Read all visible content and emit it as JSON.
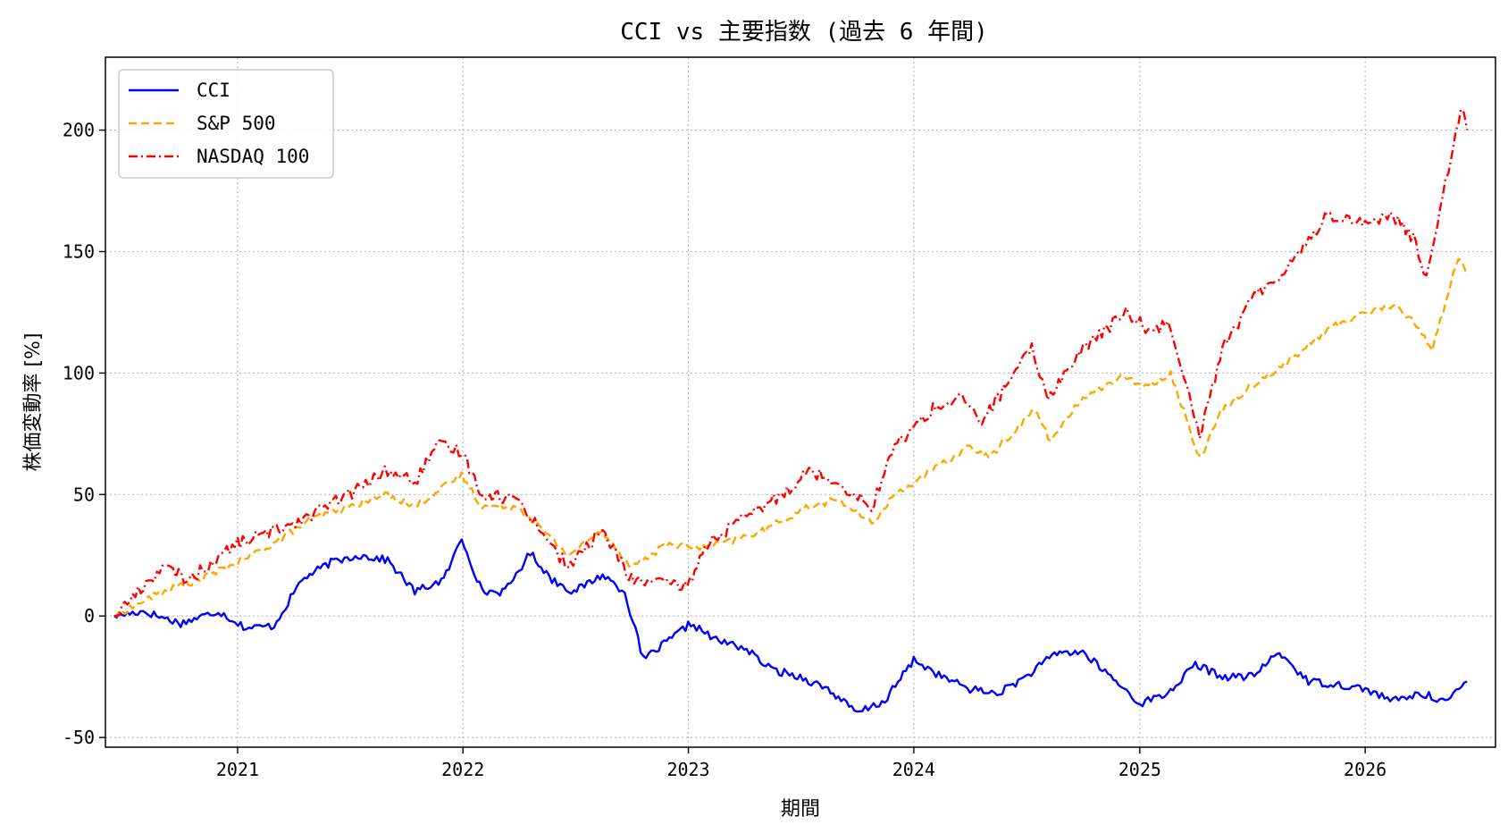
{
  "chart_data": {
    "type": "line",
    "title": "CCI vs 主要指数 (過去 6 年間)",
    "xlabel": "期間",
    "ylabel": "株価変動率 [%]",
    "xlim": [
      "2020-06-01",
      "2026-07-31"
    ],
    "ylim": [
      -54,
      230
    ],
    "xticks": [
      "2021",
      "2022",
      "2023",
      "2024",
      "2025",
      "2026"
    ],
    "xtick_dates": [
      "2021-01-01",
      "2022-01-01",
      "2023-01-01",
      "2024-01-01",
      "2025-01-01",
      "2026-01-01"
    ],
    "yticks": [
      -50,
      0,
      50,
      100,
      150,
      200
    ],
    "grid": true,
    "legend_position": "top-left",
    "series": [
      {
        "name": "CCI",
        "color": "#0000ff",
        "dash": "solid",
        "x": [
          "2020-06-15",
          "2020-08-01",
          "2020-10-01",
          "2020-12-01",
          "2021-01-15",
          "2021-03-01",
          "2021-04-15",
          "2021-06-01",
          "2021-07-15",
          "2021-09-01",
          "2021-10-15",
          "2021-12-01",
          "2021-12-30",
          "2022-02-01",
          "2022-03-10",
          "2022-04-20",
          "2022-05-25",
          "2022-06-30",
          "2022-08-15",
          "2022-09-20",
          "2022-10-20",
          "2022-12-01",
          "2023-01-05",
          "2023-02-15",
          "2023-04-01",
          "2023-05-15",
          "2023-07-01",
          "2023-08-15",
          "2023-10-01",
          "2023-11-15",
          "2024-01-01",
          "2024-02-15",
          "2024-04-01",
          "2024-05-15",
          "2024-07-01",
          "2024-08-20",
          "2024-10-01",
          "2024-11-15",
          "2025-01-01",
          "2025-02-15",
          "2025-04-01",
          "2025-05-15",
          "2025-07-01",
          "2025-08-15",
          "2025-10-01",
          "2025-11-15",
          "2026-01-01",
          "2026-02-15",
          "2026-04-01",
          "2026-05-15",
          "2026-06-15"
        ],
        "y": [
          0,
          2,
          -3,
          2,
          -5,
          -4,
          15,
          22,
          25,
          23,
          10,
          15,
          32,
          10,
          10,
          26,
          15,
          10,
          17,
          10,
          -18,
          -10,
          -3,
          -10,
          -13,
          -22,
          -25,
          -30,
          -40,
          -35,
          -18,
          -25,
          -30,
          -32,
          -25,
          -15,
          -15,
          -25,
          -36,
          -32,
          -20,
          -25,
          -25,
          -15,
          -27,
          -28,
          -30,
          -35,
          -32,
          -35,
          -27
        ]
      },
      {
        "name": "S&P 500",
        "color": "#ffa500",
        "dash": "dashed",
        "x": [
          "2020-06-15",
          "2020-09-01",
          "2020-11-01",
          "2021-01-01",
          "2021-03-01",
          "2021-05-01",
          "2021-07-01",
          "2021-09-01",
          "2021-10-15",
          "2021-12-30",
          "2022-02-01",
          "2022-04-01",
          "2022-06-20",
          "2022-08-15",
          "2022-10-01",
          "2022-12-01",
          "2023-01-15",
          "2023-03-01",
          "2023-05-01",
          "2023-07-15",
          "2023-09-01",
          "2023-10-25",
          "2023-12-01",
          "2024-02-01",
          "2024-04-01",
          "2024-05-01",
          "2024-07-15",
          "2024-08-10",
          "2024-10-01",
          "2024-12-01",
          "2025-01-15",
          "2025-02-20",
          "2025-04-08",
          "2025-05-15",
          "2025-07-01",
          "2025-09-01",
          "2025-11-01",
          "2026-01-01",
          "2026-02-15",
          "2026-03-25",
          "2026-04-20",
          "2026-06-01",
          "2026-06-15"
        ],
        "y": [
          0,
          10,
          15,
          22,
          30,
          40,
          45,
          50,
          45,
          58,
          45,
          45,
          25,
          35,
          20,
          30,
          28,
          30,
          35,
          45,
          48,
          38,
          50,
          60,
          70,
          65,
          85,
          72,
          90,
          98,
          95,
          100,
          65,
          85,
          95,
          105,
          118,
          125,
          128,
          120,
          110,
          148,
          140
        ]
      },
      {
        "name": "NASDAQ 100",
        "color": "#ff0000",
        "dash": "dashdot",
        "x": [
          "2020-06-15",
          "2020-09-01",
          "2020-10-15",
          "2021-01-01",
          "2021-03-01",
          "2021-05-01",
          "2021-07-01",
          "2021-09-01",
          "2021-10-15",
          "2021-11-20",
          "2021-12-30",
          "2022-02-01",
          "2022-04-01",
          "2022-06-20",
          "2022-08-15",
          "2022-10-01",
          "2022-12-30",
          "2023-02-01",
          "2023-04-01",
          "2023-06-01",
          "2023-07-15",
          "2023-09-01",
          "2023-10-25",
          "2023-12-01",
          "2024-02-01",
          "2024-03-15",
          "2024-04-20",
          "2024-07-10",
          "2024-08-05",
          "2024-10-01",
          "2024-12-10",
          "2025-01-15",
          "2025-02-20",
          "2025-04-08",
          "2025-05-15",
          "2025-07-01",
          "2025-09-01",
          "2025-11-01",
          "2026-01-01",
          "2026-02-15",
          "2026-03-20",
          "2026-04-10",
          "2026-05-20",
          "2026-06-05",
          "2026-06-15"
        ],
        "y": [
          0,
          20,
          15,
          30,
          35,
          42,
          50,
          60,
          55,
          70,
          68,
          50,
          48,
          20,
          35,
          15,
          12,
          30,
          40,
          50,
          60,
          55,
          45,
          70,
          85,
          90,
          80,
          110,
          90,
          110,
          125,
          118,
          120,
          75,
          110,
          130,
          145,
          165,
          162,
          165,
          155,
          140,
          190,
          210,
          200
        ]
      }
    ]
  }
}
